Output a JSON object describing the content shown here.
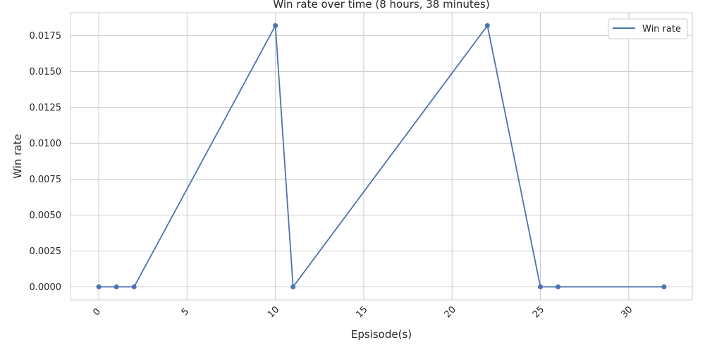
{
  "chart_data": {
    "type": "line",
    "title": "Win rate over time (8 hours, 38 minutes)",
    "xlabel": "Epsisode(s)",
    "ylabel": "Win rate",
    "xlim": [
      -1.6,
      33.6
    ],
    "ylim": [
      -0.00091,
      0.0191
    ],
    "x_ticks": [
      0,
      5,
      10,
      15,
      20,
      25,
      30
    ],
    "y_ticks": [
      0.0,
      0.0025,
      0.005,
      0.0075,
      0.01,
      0.0125,
      0.015,
      0.0175
    ],
    "y_tick_labels": [
      "0.0000",
      "0.0025",
      "0.0050",
      "0.0075",
      "0.0100",
      "0.0125",
      "0.0150",
      "0.0175"
    ],
    "x_tick_rotation": -45,
    "grid": true,
    "legend_position": "top-right",
    "series": [
      {
        "name": "Win rate",
        "color": "#4c72b0",
        "marker": "circle",
        "x": [
          0,
          1,
          2,
          10,
          11,
          22,
          25,
          26,
          32
        ],
        "y": [
          0.0,
          0.0,
          0.0,
          0.0182,
          0.0,
          0.0182,
          0.0,
          0.0,
          0.0
        ]
      }
    ]
  }
}
